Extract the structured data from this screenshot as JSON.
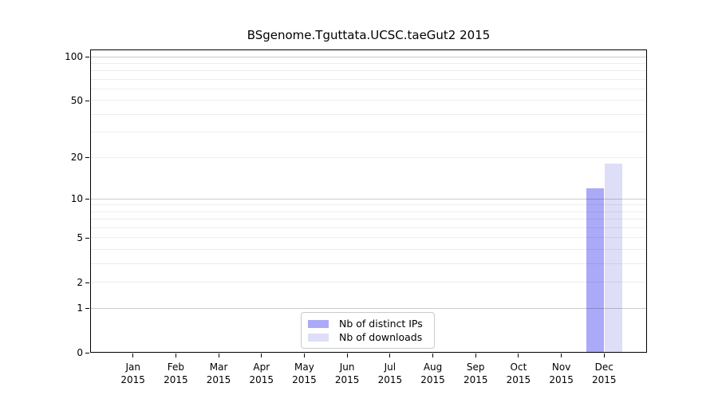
{
  "chart_data": {
    "type": "bar",
    "title": "BSgenome.Tguttata.UCSC.taeGut2 2015",
    "categories": [
      "Jan",
      "Feb",
      "Mar",
      "Apr",
      "May",
      "Jun",
      "Jul",
      "Aug",
      "Sep",
      "Oct",
      "Nov",
      "Dec"
    ],
    "category_year": "2015",
    "series": [
      {
        "name": "Nb of distinct IPs",
        "color": "#aaaaf8",
        "values": [
          0,
          0,
          0,
          0,
          0,
          0,
          0,
          0,
          0,
          0,
          0,
          12
        ]
      },
      {
        "name": "Nb of downloads",
        "color": "#dedef8",
        "values": [
          0,
          0,
          0,
          0,
          0,
          0,
          0,
          0,
          0,
          0,
          0,
          18
        ]
      }
    ],
    "xlabel": "",
    "ylabel": "",
    "y_axis": {
      "scale": "log1p",
      "tick_values": [
        0,
        1,
        2,
        5,
        10,
        20,
        50,
        100
      ],
      "major_gridlines": [
        1,
        10,
        100
      ],
      "minor_gridlines": [
        2,
        3,
        4,
        5,
        6,
        7,
        8,
        9,
        20,
        30,
        40,
        50,
        60,
        70,
        80,
        90
      ],
      "ylim": [
        0,
        113
      ]
    },
    "grid": true,
    "legend": {
      "position": "lower center",
      "entries": [
        "Nb of distinct IPs",
        "Nb of downloads"
      ]
    }
  }
}
